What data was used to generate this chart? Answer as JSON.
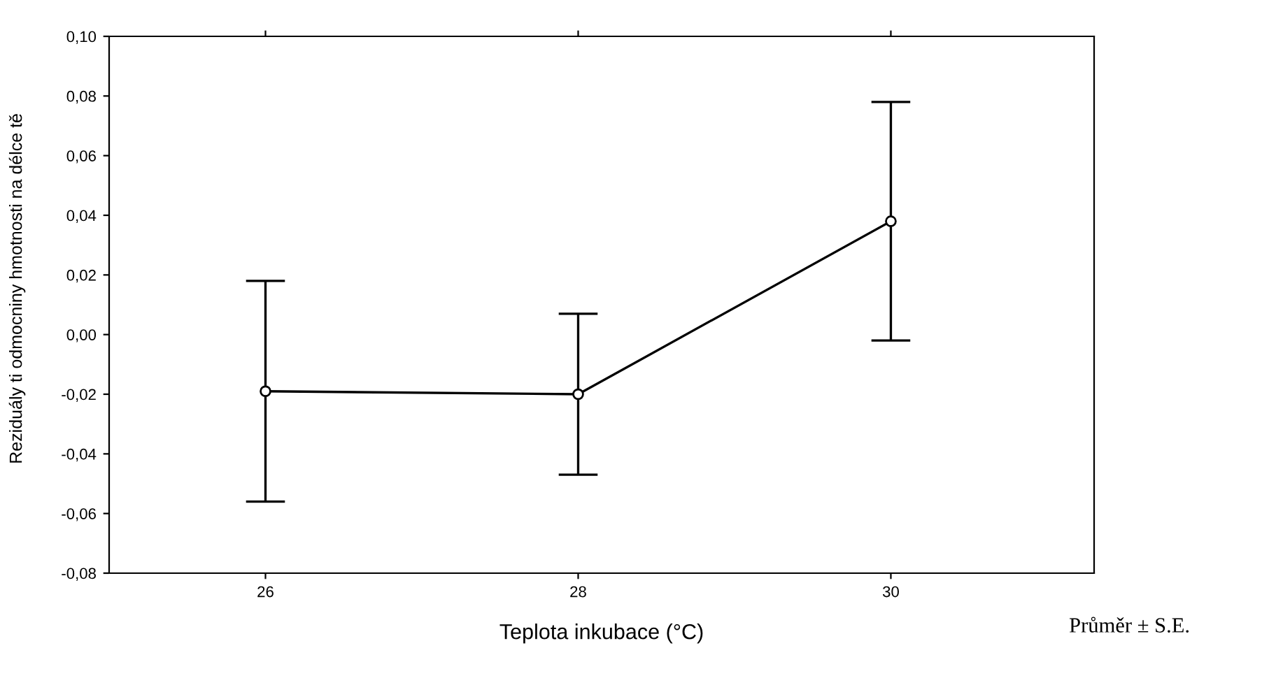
{
  "chart_data": {
    "type": "line",
    "xlabel": "Teplota inkubace (°C)",
    "ylabel": "Reziduály ti odmocniny hmotnosti na délce tě",
    "x": [
      26,
      28,
      30
    ],
    "series": [
      {
        "color": "#000000",
        "values": [
          -0.019,
          -0.02,
          0.038
        ],
        "errors": [
          0.037,
          0.027,
          0.04
        ]
      }
    ],
    "marker": "circle",
    "line_style": "solid",
    "grid": false,
    "legend": false,
    "xlim": [
      25,
      31.3
    ],
    "xticks": [
      26,
      28,
      30
    ],
    "ylim": [
      -0.08,
      0.1
    ],
    "yticks": [
      {
        "value": -0.08,
        "label": "-0,08"
      },
      {
        "value": -0.06,
        "label": "-0,06"
      },
      {
        "value": -0.04,
        "label": "-0,04"
      },
      {
        "value": -0.02,
        "label": "-0,02"
      },
      {
        "value": 0.0,
        "label": "0,00"
      },
      {
        "value": 0.02,
        "label": "0,02"
      },
      {
        "value": 0.04,
        "label": "0,04"
      },
      {
        "value": 0.06,
        "label": "0,06"
      },
      {
        "value": 0.08,
        "label": "0,08"
      },
      {
        "value": 0.1,
        "label": "0,10"
      }
    ],
    "annotations": [
      "Průměr ± S.E."
    ]
  }
}
